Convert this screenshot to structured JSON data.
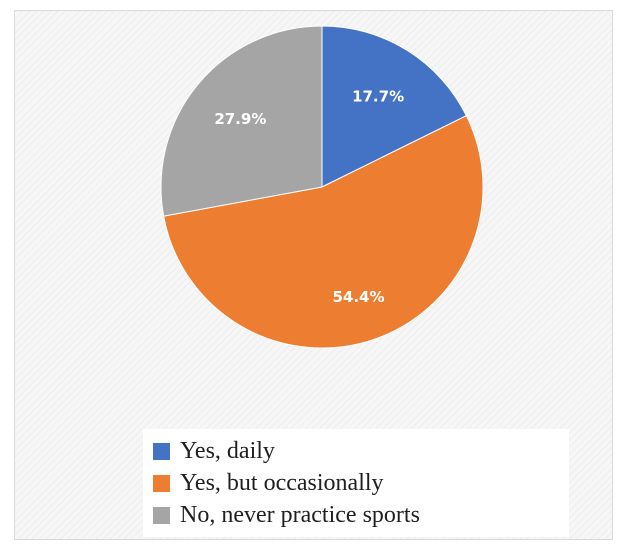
{
  "chart_data": {
    "type": "pie",
    "title": "",
    "slices": [
      {
        "name": "Yes, daily",
        "value": 17.7,
        "label": "17.7%",
        "color": "#4472c4"
      },
      {
        "name": "Yes, but occasionally",
        "value": 54.4,
        "label": "54.4%",
        "color": "#ed7d31"
      },
      {
        "name": "No, never practice sports",
        "value": 27.9,
        "label": "27.9%",
        "color": "#a5a5a5"
      }
    ],
    "start_angle": "12 o'clock",
    "direction": "clockwise",
    "legend_position": "bottom"
  },
  "legend": {
    "items": [
      {
        "label": "Yes, daily",
        "color": "#4472c4"
      },
      {
        "label": "Yes, but occasionally",
        "color": "#ed7d31"
      },
      {
        "label": "No, never practice sports",
        "color": "#a5a5a5"
      }
    ]
  }
}
